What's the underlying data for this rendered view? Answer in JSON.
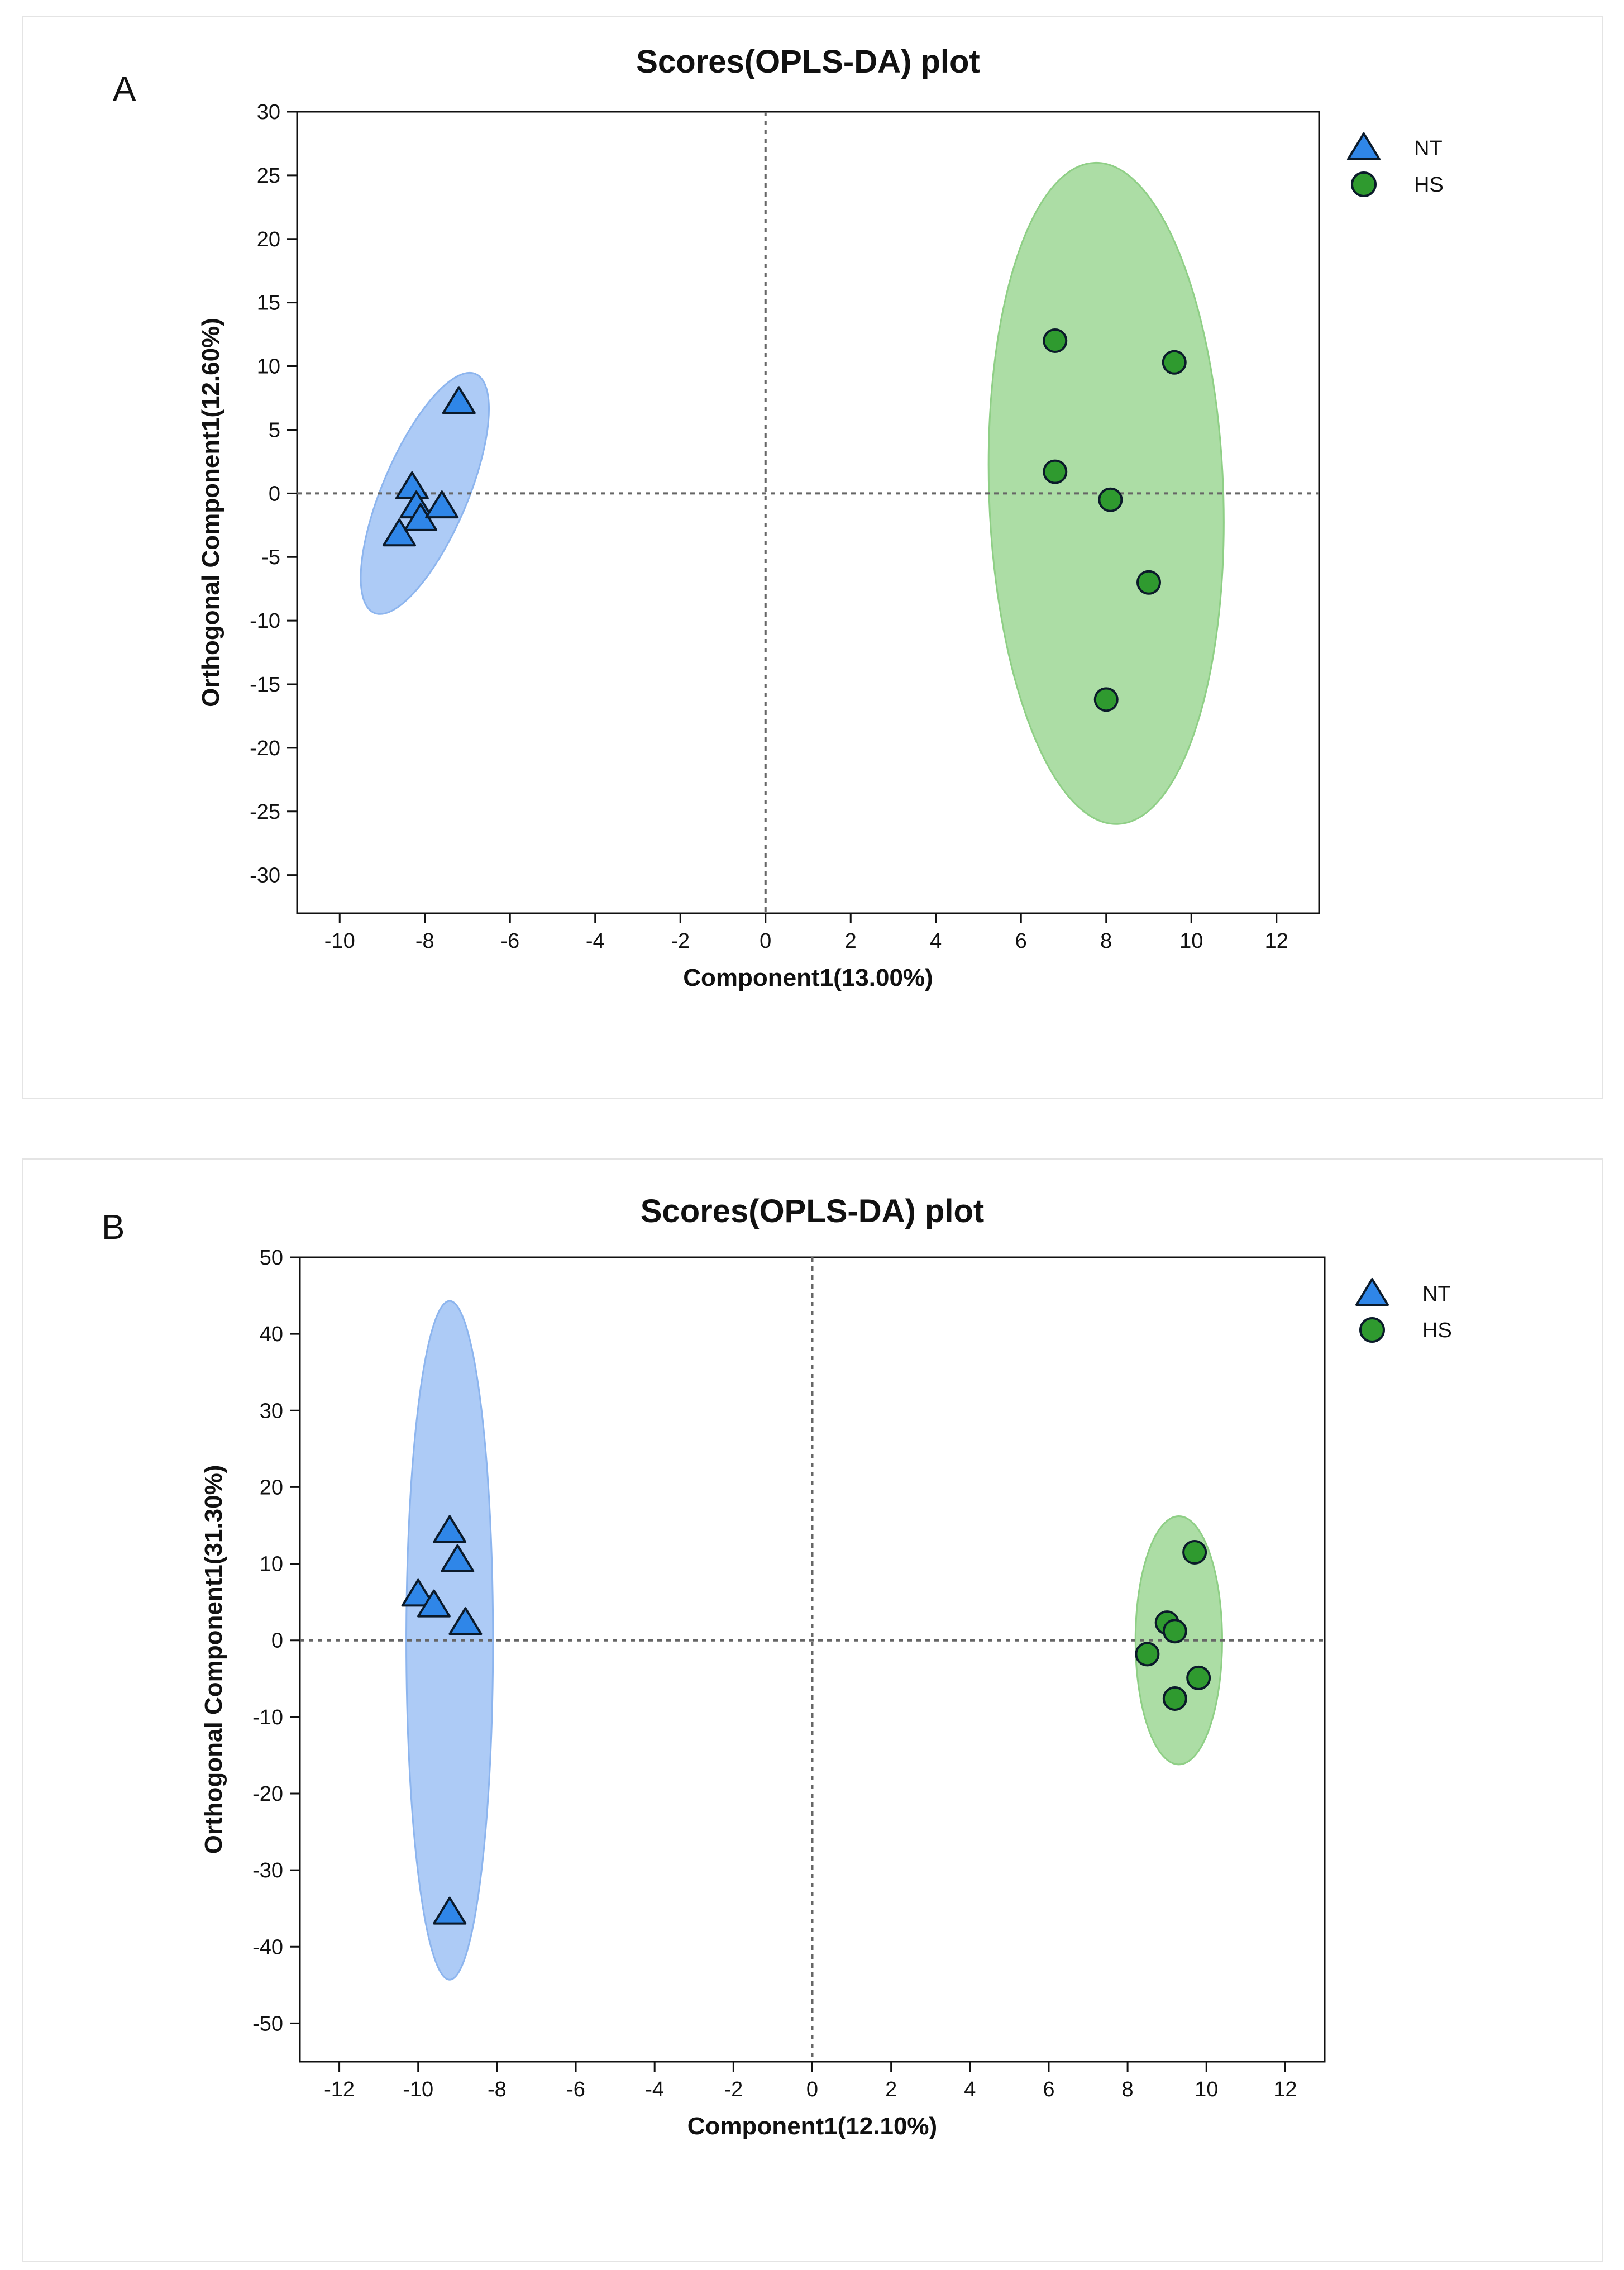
{
  "colors": {
    "nt_fill": "#2f86e8",
    "nt_ellipse": "#a9c8f5",
    "hs_fill": "#2f9a2f",
    "hs_ellipse": "#a8dba0",
    "stroke": "#0b1a2a"
  },
  "legend": [
    {
      "label": "NT",
      "marker": "triangle"
    },
    {
      "label": "HS",
      "marker": "circle"
    }
  ],
  "chart_data": [
    {
      "panel": "A",
      "type": "scatter",
      "title": "Scores(OPLS-DA) plot",
      "xlabel": "Component1(13.00%)",
      "ylabel": "Orthogonal Component1(12.60%)",
      "xlim": [
        -11,
        13
      ],
      "ylim": [
        -33,
        30
      ],
      "xticks": [
        -10,
        -8,
        -6,
        -4,
        -2,
        0,
        2,
        4,
        6,
        8,
        10,
        12
      ],
      "yticks": [
        30,
        25,
        20,
        15,
        10,
        5,
        0,
        -5,
        -10,
        -15,
        -20,
        -25,
        -30
      ],
      "series": [
        {
          "name": "NT",
          "marker": "triangle",
          "x": [
            -7.2,
            -8.3,
            -8.2,
            -8.1,
            -7.6,
            -8.6
          ],
          "y": [
            7.2,
            0.5,
            -1.0,
            -2.0,
            -1.0,
            -3.2
          ],
          "ellipse": {
            "cx": -8.0,
            "cy": 0,
            "rx": 1.0,
            "ry": 10.2,
            "rotation_deg": 23
          }
        },
        {
          "name": "HS",
          "marker": "circle",
          "x": [
            6.8,
            9.6,
            6.8,
            8.1,
            9.0,
            8.0
          ],
          "y": [
            12.0,
            10.3,
            1.7,
            -0.5,
            -7.0,
            -16.2
          ],
          "ellipse": {
            "cx": 8.0,
            "cy": 0,
            "rx": 2.75,
            "ry": 26.0,
            "rotation_deg": -2
          }
        }
      ]
    },
    {
      "panel": "B",
      "type": "scatter",
      "title": "Scores(OPLS-DA) plot",
      "xlabel": "Component1(12.10%)",
      "ylabel": "Orthogonal Component1(31.30%)",
      "xlim": [
        -13,
        13
      ],
      "ylim": [
        -55,
        50
      ],
      "xticks": [
        -12,
        -10,
        -8,
        -6,
        -4,
        -2,
        0,
        2,
        4,
        6,
        8,
        10,
        12
      ],
      "yticks": [
        50,
        40,
        30,
        20,
        10,
        0,
        -10,
        -20,
        -30,
        -40,
        -50
      ],
      "series": [
        {
          "name": "NT",
          "marker": "triangle",
          "x": [
            -9.2,
            -9.0,
            -10.0,
            -9.6,
            -8.8,
            -9.2
          ],
          "y": [
            14.3,
            10.5,
            6.0,
            4.6,
            2.3,
            -35.5
          ],
          "ellipse": {
            "cx": -9.2,
            "cy": 0,
            "rx": 1.1,
            "ry": 44.3,
            "rotation_deg": 0
          }
        },
        {
          "name": "HS",
          "marker": "circle",
          "x": [
            9.7,
            9.0,
            9.2,
            8.5,
            9.8,
            9.2
          ],
          "y": [
            11.5,
            2.3,
            1.2,
            -1.8,
            -4.9,
            -7.6
          ],
          "ellipse": {
            "cx": 9.3,
            "cy": 0,
            "rx": 1.1,
            "ry": 16.2,
            "rotation_deg": 0
          }
        }
      ]
    }
  ],
  "panels": [
    {
      "letter": "A"
    },
    {
      "letter": "B"
    }
  ]
}
